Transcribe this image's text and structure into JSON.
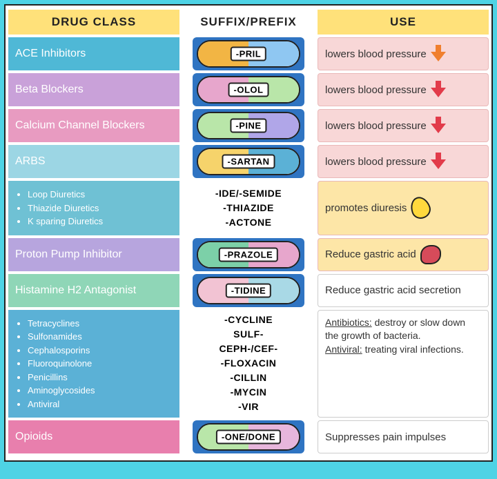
{
  "headers": {
    "class": "DRUG CLASS",
    "suffix": "SUFFIX/PREFIX",
    "use": "USE"
  },
  "rows": [
    {
      "class_bg": "#4fb8d6",
      "class_items": [
        "ACE Inhibitors"
      ],
      "pill": {
        "left": "#f2b544",
        "right": "#8fc7f2",
        "label": "-PRIL"
      },
      "use_text": "lowers blood pressure",
      "arrow_color": "#f07f2e"
    },
    {
      "class_bg": "#c9a1d9",
      "class_items": [
        "Beta Blockers"
      ],
      "pill": {
        "left": "#e7a6cc",
        "right": "#b9e6a9",
        "label": "-OLOL"
      },
      "use_text": "lowers blood pressure",
      "arrow_color": "#e23b4a"
    },
    {
      "class_bg": "#e89bc1",
      "class_items": [
        "Calcium Channel Blockers"
      ],
      "pill": {
        "left": "#b9e6a9",
        "right": "#b0a6e8",
        "label": "-PINE"
      },
      "use_text": "lowers blood pressure",
      "arrow_color": "#e23b4a"
    },
    {
      "class_bg": "#9cd6e4",
      "class_items": [
        "ARBS"
      ],
      "pill": {
        "left": "#f6d36b",
        "right": "#5bb1d6",
        "label": "-SARTAN"
      },
      "use_text": "lowers blood pressure",
      "arrow_color": "#e23b4a"
    },
    {
      "class_bg": "#6fc1d4",
      "class_items": [
        "Loop Diuretics",
        "Thiazide Diuretics",
        "K sparing Diuretics"
      ],
      "suffix_lines": [
        "-IDE/-SEMIDE",
        "-THIAZIDE",
        "-ACTONE"
      ],
      "use_bg": "#fde6a7",
      "use_text": "promotes diuresis",
      "icon": "drop"
    },
    {
      "class_bg": "#b7a5de",
      "class_items": [
        "Proton Pump Inhibitor"
      ],
      "pill": {
        "left": "#7cd0a8",
        "right": "#e7a6cc",
        "label": "-PRAZOLE"
      },
      "use_bg": "#fde6a7",
      "use_text": "Reduce gastric acid",
      "icon": "stomach"
    },
    {
      "class_bg": "#8fd6b7",
      "class_items": [
        "Histamine H2 Antagonist"
      ],
      "pill": {
        "left": "#f2c3d3",
        "right": "#a9d9e6",
        "label": "-TIDINE"
      },
      "use_bg": "#ffffff",
      "use_text": "Reduce gastric acid secretion"
    },
    {
      "class_bg": "#5bb1d6",
      "class_items": [
        "Tetracyclines",
        "Sulfonamides",
        "Cephalosporins",
        "Fluoroquinolone",
        "Penicillins",
        "Aminoglycosides",
        "Antiviral"
      ],
      "suffix_lines": [
        "-CYCLINE",
        "SULF-",
        "CEPH-/CEF-",
        "-FLOXACIN",
        "-CILLIN",
        "-MYCIN",
        "-VIR"
      ],
      "use_bg": "#ffffff",
      "use_html": true,
      "use_parts": {
        "a_label": "Antibiotics:",
        "a_text": " destroy or slow down the growth of bacteria.",
        "b_label": "Antiviral:",
        "b_text": " treating viral infections."
      }
    },
    {
      "class_bg": "#e87fad",
      "class_items": [
        "Opioids"
      ],
      "pill": {
        "left": "#b9e6a9",
        "right": "#e7b6dc",
        "label": "-ONE/DONE"
      },
      "use_bg": "#ffffff",
      "use_text": "Suppresses pain impulses"
    }
  ]
}
